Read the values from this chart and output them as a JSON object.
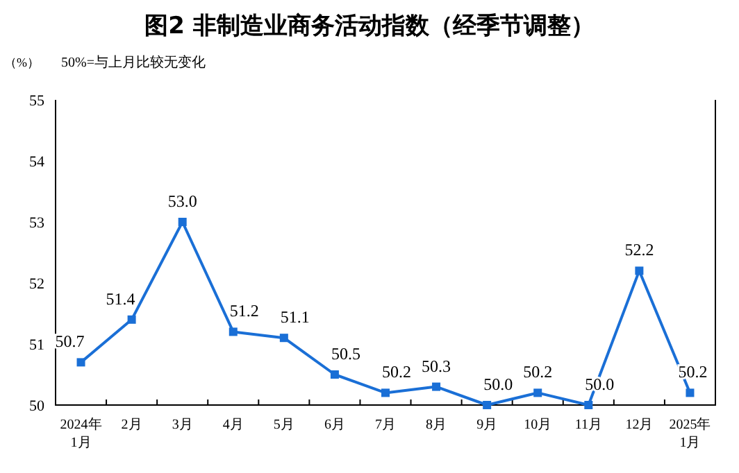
{
  "chart_data": {
    "type": "line",
    "title": "图2  非制造业商务活动指数（经季节调整）",
    "ylabel": "（%）",
    "annotations": [
      "50%=与上月比较无变化"
    ],
    "categories": [
      "2024年\n1月",
      "2月",
      "3月",
      "4月",
      "5月",
      "6月",
      "7月",
      "8月",
      "9月",
      "10月",
      "11月",
      "12月",
      "2025年\n1月"
    ],
    "series": [
      {
        "color": "#1a6fd6",
        "values": [
          50.7,
          51.4,
          53.0,
          51.2,
          51.1,
          50.5,
          50.2,
          50.3,
          50.0,
          50.2,
          50.0,
          52.2,
          50.2
        ],
        "value_labels": [
          "50.7",
          "51.4",
          "53.0",
          "51.2",
          "51.1",
          "50.5",
          "50.2",
          "50.3",
          "50.0",
          "50.2",
          "50.0",
          "52.2",
          "50.2"
        ]
      }
    ],
    "ylim": [
      50,
      55
    ],
    "yticks": [
      50,
      51,
      52,
      53,
      54,
      55
    ],
    "marker": "square"
  }
}
